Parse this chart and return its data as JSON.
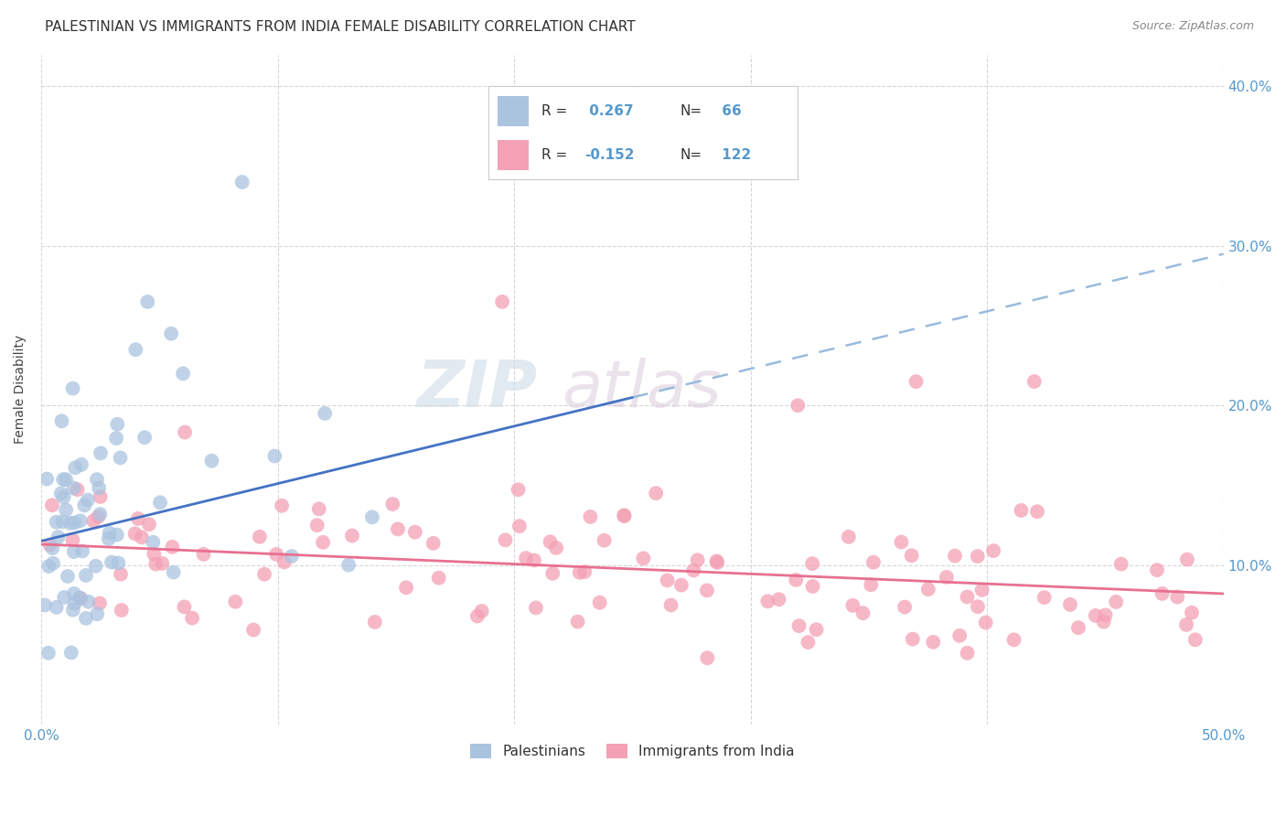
{
  "title": "PALESTINIAN VS IMMIGRANTS FROM INDIA FEMALE DISABILITY CORRELATION CHART",
  "source": "Source: ZipAtlas.com",
  "xlabel": "",
  "ylabel": "Female Disability",
  "xlim": [
    0.0,
    0.5
  ],
  "ylim": [
    0.0,
    0.42
  ],
  "xticks": [
    0.0,
    0.1,
    0.2,
    0.3,
    0.4,
    0.5
  ],
  "yticks": [
    0.1,
    0.2,
    0.3,
    0.4
  ],
  "xticklabels": [
    "0.0%",
    "",
    "",
    "",
    "",
    "50.0%"
  ],
  "yticklabels_right": [
    "10.0%",
    "20.0%",
    "30.0%",
    "40.0%"
  ],
  "background_color": "#ffffff",
  "grid_color": "#cccccc",
  "palestinian_color": "#aac4e0",
  "indian_color": "#f4a0b5",
  "palestinian_line_color": "#4472c4",
  "indian_line_color": "#e87090",
  "dashed_line_color": "#99bbdd",
  "R_palestinian": 0.267,
  "N_palestinian": 66,
  "R_indian": -0.152,
  "N_indian": 122,
  "watermark_zip": "ZIP",
  "watermark_atlas": "atlas",
  "legend_entries": [
    "Palestinians",
    "Immigrants from India"
  ],
  "title_fontsize": 11,
  "axis_label_fontsize": 10,
  "tick_fontsize": 11,
  "legend_fontsize": 11,
  "source_fontsize": 9,
  "pal_line_x0": 0.0,
  "pal_line_y0": 0.115,
  "pal_line_x1": 0.25,
  "pal_line_y1": 0.205,
  "dash_line_x0": 0.25,
  "dash_line_y0": 0.205,
  "dash_line_x1": 0.5,
  "dash_line_y1": 0.295,
  "ind_line_x0": 0.0,
  "ind_line_y0": 0.113,
  "ind_line_x1": 0.5,
  "ind_line_y1": 0.082
}
